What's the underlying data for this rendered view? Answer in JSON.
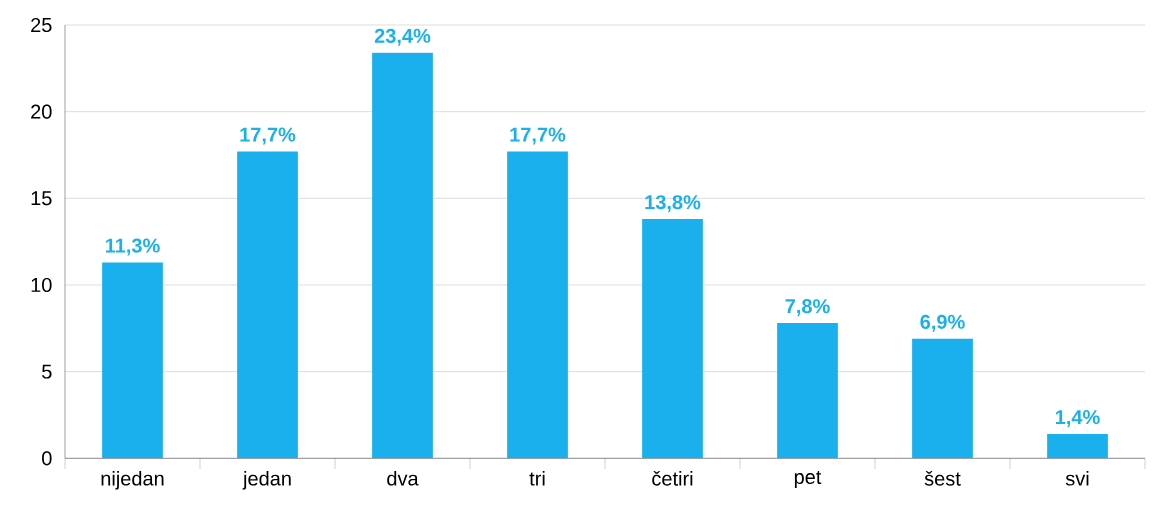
{
  "chart_data": {
    "type": "bar",
    "categories": [
      "nijedan",
      "jedan",
      "dva",
      "tri",
      "četiri",
      "pet",
      "šest",
      "svi"
    ],
    "values": [
      11.3,
      17.7,
      23.4,
      17.7,
      13.8,
      7.8,
      6.9,
      1.4
    ],
    "value_labels": [
      "11,3%",
      "17,7%",
      "23,4%",
      "17,7%",
      "13,8%",
      "7,8%",
      "6,9%",
      "1,4%"
    ],
    "color": "#1ab0ed",
    "ylim": [
      0,
      25
    ],
    "yticks": [
      0,
      5,
      10,
      15,
      20,
      25
    ],
    "grid": "y"
  }
}
